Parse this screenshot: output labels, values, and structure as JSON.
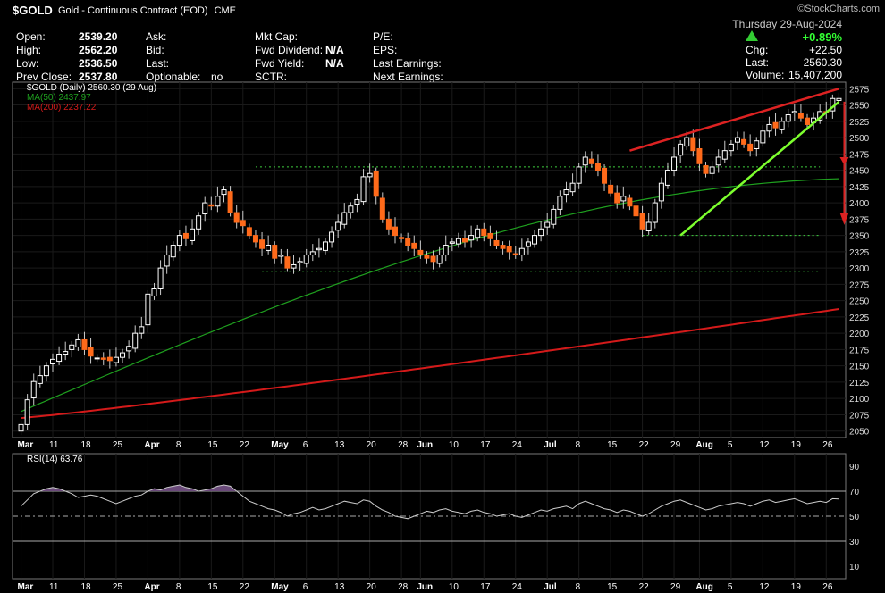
{
  "header": {
    "symbol": "$GOLD",
    "name": "Gold - Continuous Contract (EOD)",
    "exchange": "CME",
    "brand": "©StockCharts.com",
    "date": "Thursday  29-Aug-2024",
    "pct_change": "+0.89%",
    "chg_label": "Chg:",
    "chg_value": "+22.50",
    "last_label": "Last:",
    "last_value": "2560.30",
    "volume_label": "Volume:",
    "volume_value": "15,407,200",
    "col1": [
      {
        "label": "Open:",
        "value": "2539.20"
      },
      {
        "label": "High:",
        "value": "2562.20"
      },
      {
        "label": "Low:",
        "value": "2536.50"
      },
      {
        "label": "Prev Close:",
        "value": "2537.80"
      }
    ],
    "col2": [
      {
        "label": "Ask:",
        "value": ""
      },
      {
        "label": "Bid:",
        "value": ""
      },
      {
        "label": "Last:",
        "value": ""
      },
      {
        "label": "Optionable:",
        "value": "no"
      }
    ],
    "col3": [
      {
        "label": "Mkt Cap:",
        "value": ""
      },
      {
        "label": "Fwd Dividend:",
        "value": "N/A"
      },
      {
        "label": "Fwd Yield:",
        "value": "N/A"
      },
      {
        "label": "SCTR:",
        "value": ""
      }
    ],
    "col4": [
      {
        "label": "P/E:",
        "value": ""
      },
      {
        "label": "EPS:",
        "value": ""
      },
      {
        "label": "Last Earnings:",
        "value": ""
      },
      {
        "label": "Next Earnings:",
        "value": ""
      }
    ]
  },
  "legend": {
    "price": "$GOLD (Daily) 2560.30 (29 Aug)",
    "ma50": "MA(50) 2437.97",
    "ma200": "MA(200) 2237.22",
    "rsi": "RSI(14) 63.76"
  },
  "colors": {
    "up_candle": "#ffffff",
    "down_candle": "#ff6a1a",
    "ma50": "#1fa11f",
    "ma200": "#d41a1a",
    "trend_upper": "#dd2222",
    "trend_lower": "#7dff2e",
    "support": "#3fcf3f",
    "rsi_line": "#cccccc",
    "rsi_fill": "#6a4a7a"
  },
  "chart_data": {
    "type": "candlestick",
    "y_ticks": [
      2050,
      2075,
      2100,
      2125,
      2150,
      2175,
      2200,
      2225,
      2250,
      2275,
      2300,
      2325,
      2350,
      2375,
      2400,
      2425,
      2450,
      2475,
      2500,
      2525,
      2550,
      2575
    ],
    "ylim": [
      2040,
      2585
    ],
    "x_labels": [
      "Mar",
      "11",
      "18",
      "25",
      "Apr",
      "8",
      "15",
      "22",
      "May",
      "6",
      "13",
      "20",
      "28",
      "Jun",
      "10",
      "17",
      "24",
      "Jul",
      "8",
      "15",
      "22",
      "29",
      "Aug",
      "5",
      "12",
      "19",
      "26"
    ],
    "x_label_index": [
      0,
      5,
      10,
      15,
      20,
      25,
      30,
      35,
      40,
      45,
      50,
      55,
      60,
      63,
      68,
      73,
      78,
      83,
      88,
      93,
      98,
      103,
      107,
      112,
      117,
      122,
      127
    ],
    "bar_count": 130,
    "close": [
      2060,
      2098,
      2126,
      2135,
      2150,
      2160,
      2168,
      2172,
      2182,
      2190,
      2175,
      2165,
      2162,
      2160,
      2158,
      2163,
      2170,
      2180,
      2200,
      2210,
      2260,
      2268,
      2300,
      2320,
      2335,
      2350,
      2345,
      2360,
      2380,
      2400,
      2395,
      2410,
      2420,
      2385,
      2370,
      2365,
      2350,
      2340,
      2330,
      2335,
      2315,
      2320,
      2300,
      2305,
      2310,
      2320,
      2325,
      2330,
      2340,
      2355,
      2370,
      2385,
      2395,
      2405,
      2440,
      2445,
      2410,
      2375,
      2360,
      2350,
      2345,
      2335,
      2330,
      2320,
      2315,
      2310,
      2320,
      2335,
      2340,
      2345,
      2340,
      2350,
      2360,
      2350,
      2345,
      2335,
      2330,
      2325,
      2320,
      2330,
      2340,
      2350,
      2360,
      2370,
      2390,
      2410,
      2420,
      2430,
      2455,
      2470,
      2460,
      2450,
      2430,
      2415,
      2400,
      2410,
      2395,
      2380,
      2360,
      2370,
      2400,
      2430,
      2450,
      2470,
      2490,
      2500,
      2480,
      2460,
      2445,
      2455,
      2470,
      2480,
      2490,
      2500,
      2490,
      2480,
      2495,
      2510,
      2520,
      2515,
      2525,
      2535,
      2540,
      2530,
      2520,
      2530,
      2540,
      2538,
      2560,
      2560
    ],
    "ma50_start": 2080,
    "ma50_end": 2437.97,
    "ma200_start": 2070,
    "ma200_end": 2237.22,
    "series": [
      {
        "name": "MA(50)",
        "value": 2437.97
      },
      {
        "name": "MA(200)",
        "value": 2237.22
      }
    ],
    "rsi": {
      "ticks": [
        10,
        30,
        50,
        70,
        90
      ],
      "ylim": [
        0,
        100
      ],
      "last": 63.76,
      "values": [
        58,
        63,
        68,
        70,
        72,
        73,
        72,
        70,
        68,
        65,
        66,
        67,
        66,
        64,
        62,
        60,
        62,
        64,
        66,
        67,
        70,
        72,
        71,
        73,
        74,
        75,
        73,
        72,
        70,
        71,
        72,
        74,
        75,
        74,
        70,
        66,
        62,
        60,
        58,
        56,
        55,
        53,
        50,
        52,
        53,
        55,
        57,
        55,
        56,
        58,
        60,
        62,
        61,
        60,
        63,
        62,
        58,
        55,
        53,
        50,
        49,
        48,
        50,
        52,
        54,
        53,
        55,
        56,
        54,
        53,
        52,
        54,
        55,
        53,
        52,
        50,
        51,
        52,
        50,
        49,
        51,
        53,
        55,
        54,
        56,
        57,
        58,
        56,
        60,
        62,
        60,
        58,
        56,
        55,
        53,
        55,
        54,
        52,
        50,
        52,
        55,
        58,
        60,
        62,
        63,
        61,
        59,
        57,
        55,
        56,
        58,
        59,
        60,
        61,
        60,
        58,
        60,
        62,
        63,
        61,
        62,
        63,
        64,
        62,
        60,
        61,
        62,
        61,
        64,
        63.76
      ]
    },
    "support_lines": [
      2455,
      2350,
      2295
    ],
    "upper_trend": [
      2480,
      2575
    ],
    "lower_trend": [
      2350,
      2555
    ]
  }
}
